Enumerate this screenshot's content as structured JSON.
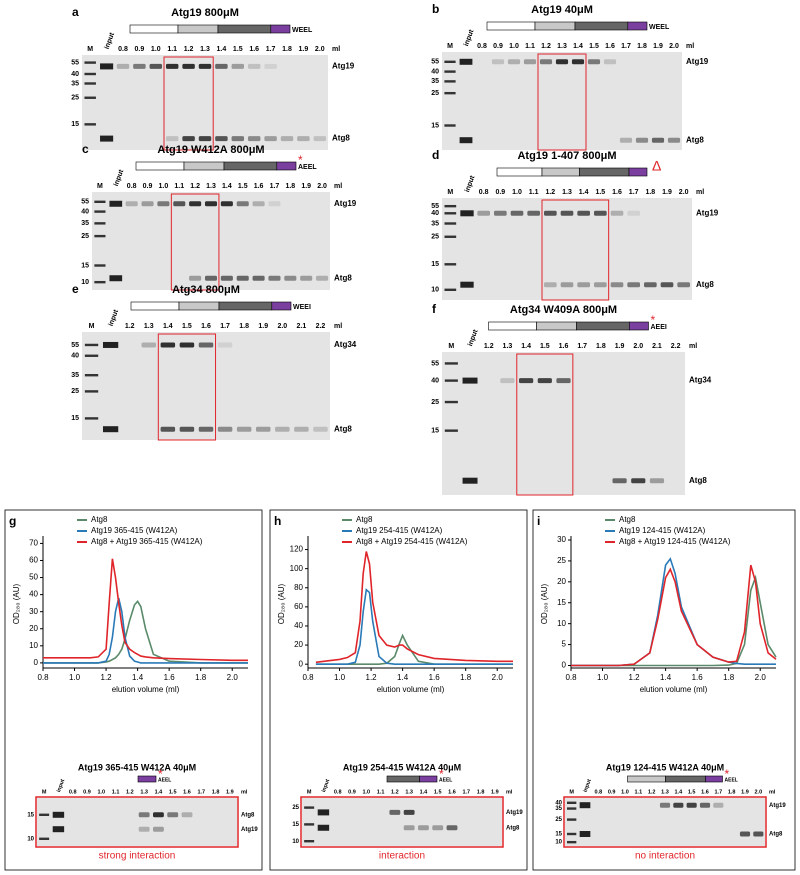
{
  "gels": [
    {
      "letter": "a",
      "title": "Atg19 800μM",
      "motif": "WEEL",
      "lanes": [
        "M",
        "input",
        "0.8",
        "0.9",
        "1.0",
        "1.1",
        "1.2",
        "1.3",
        "1.4",
        "1.5",
        "1.6",
        "1.7",
        "1.8",
        "1.9",
        "2.0"
      ],
      "unit": "ml",
      "markers": [
        "55",
        "40",
        "35",
        "25",
        "15"
      ],
      "proteins": [
        "Atg19",
        "Atg8"
      ]
    },
    {
      "letter": "b",
      "title": "Atg19 40μM",
      "motif": "WEEL",
      "lanes": [
        "M",
        "input",
        "0.8",
        "0.9",
        "1.0",
        "1.1",
        "1.2",
        "1.3",
        "1.4",
        "1.5",
        "1.6",
        "1.7",
        "1.8",
        "1.9",
        "2.0"
      ],
      "unit": "ml",
      "markers": [
        "55",
        "40",
        "35",
        "25",
        "15"
      ],
      "proteins": [
        "Atg19",
        "Atg8"
      ]
    },
    {
      "letter": "c",
      "title": "Atg19 W412A 800μM",
      "motif": "AEEL",
      "mutation": "*",
      "lanes": [
        "M",
        "input",
        "0.8",
        "0.9",
        "1.0",
        "1.1",
        "1.2",
        "1.3",
        "1.4",
        "1.5",
        "1.6",
        "1.7",
        "1.8",
        "1.9",
        "2.0"
      ],
      "unit": "ml",
      "markers": [
        "55",
        "40",
        "35",
        "25",
        "15",
        "10"
      ],
      "proteins": [
        "Atg19",
        "Atg8"
      ]
    },
    {
      "letter": "d",
      "title": "Atg19 1-407 800μM",
      "mutation": "Δ",
      "lanes": [
        "M",
        "input",
        "0.8",
        "0.9",
        "1.0",
        "1.1",
        "1.2",
        "1.3",
        "1.4",
        "1.5",
        "1.6",
        "1.7",
        "1.8",
        "1.9",
        "2.0"
      ],
      "unit": "ml",
      "markers": [
        "55",
        "40",
        "35",
        "25",
        "15",
        "10"
      ],
      "proteins": [
        "Atg19",
        "Atg8"
      ]
    },
    {
      "letter": "e",
      "title": "Atg34 800μM",
      "motif": "WEEI",
      "lanes": [
        "M",
        "input",
        "1.2",
        "1.3",
        "1.4",
        "1.5",
        "1.6",
        "1.7",
        "1.8",
        "1.9",
        "2.0",
        "2.1",
        "2.2"
      ],
      "unit": "ml",
      "markers": [
        "55",
        "40",
        "35",
        "25",
        "15"
      ],
      "proteins": [
        "Atg34",
        "Atg8"
      ]
    },
    {
      "letter": "f",
      "title": "Atg34 W409A 800μM",
      "motif": "AEEI",
      "mutation": "*",
      "lanes": [
        "M",
        "input",
        "1.2",
        "1.3",
        "1.4",
        "1.5",
        "1.6",
        "1.7",
        "1.8",
        "1.9",
        "2.0",
        "2.1",
        "2.2"
      ],
      "unit": "ml",
      "markers": [
        "55",
        "40",
        "25",
        "15"
      ],
      "proteins": [
        "Atg34",
        "Atg8"
      ]
    }
  ],
  "sub_gels": [
    {
      "title": "Atg19 365-415 W412A 40μM",
      "motif": "AEEL",
      "mutation": "*",
      "lanes": [
        "M",
        "input",
        "0.8",
        "0.9",
        "1.0",
        "1.1",
        "1.2",
        "1.3",
        "1.4",
        "1.5",
        "1.6",
        "1.7",
        "1.8",
        "1.9"
      ],
      "unit": "ml",
      "markers": [
        "15",
        "10"
      ],
      "proteins": [
        "Atg8",
        "Atg19"
      ],
      "caption": "strong interaction"
    },
    {
      "title": "Atg19 254-415 W412A 40μM",
      "motif": "AEEL",
      "mutation": "*",
      "lanes": [
        "M",
        "input",
        "0.8",
        "0.9",
        "1.0",
        "1.1",
        "1.2",
        "1.3",
        "1.4",
        "1.5",
        "1.6",
        "1.7",
        "1.8",
        "1.9"
      ],
      "unit": "ml",
      "markers": [
        "25",
        "15",
        "10"
      ],
      "proteins": [
        "Atg19",
        "Atg8"
      ],
      "caption": "interaction"
    },
    {
      "title": "Atg19 124-415 W412A 40μM",
      "motif": "AEEL",
      "mutation": "*",
      "lanes": [
        "M",
        "input",
        "0.8",
        "0.9",
        "1.0",
        "1.1",
        "1.2",
        "1.3",
        "1.4",
        "1.5",
        "1.6",
        "1.7",
        "1.8",
        "1.9",
        "2.0"
      ],
      "unit": "ml",
      "markers": [
        "40",
        "35",
        "25",
        "15",
        "10"
      ],
      "proteins": [
        "Atg19",
        "Atg8"
      ],
      "caption": "no interaction"
    }
  ],
  "chart_data": [
    {
      "type": "line",
      "letter": "g",
      "xlabel": "elution volume (ml)",
      "ylabel": "OD₂₈₀ (AU)",
      "x": [
        0.8,
        0.9,
        1.0,
        1.1,
        1.15,
        1.2,
        1.22,
        1.24,
        1.26,
        1.28,
        1.3,
        1.32,
        1.35,
        1.38,
        1.4,
        1.42,
        1.45,
        1.5,
        1.6,
        1.8,
        2.0,
        2.1
      ],
      "series": [
        {
          "name": "Atg8",
          "color": "#5a8a6a",
          "values": [
            0,
            0,
            0,
            0,
            0,
            0.5,
            1,
            2,
            3,
            5,
            8,
            14,
            25,
            34,
            36,
            33,
            20,
            5,
            1,
            0,
            0,
            0
          ]
        },
        {
          "name": "Atg19 365-415 (W412A)",
          "color": "#2a7ab8",
          "values": [
            0,
            0,
            0,
            0,
            0,
            1,
            5,
            15,
            30,
            38,
            30,
            15,
            4,
            1,
            0.5,
            0,
            0,
            0,
            0,
            0,
            0,
            0
          ]
        },
        {
          "name": "Atg8 + Atg19 365-415 (W412A)",
          "color": "#e0252a",
          "values": [
            3,
            3,
            3,
            3,
            3.5,
            8,
            35,
            61,
            50,
            35,
            22,
            12,
            8,
            6,
            5,
            4,
            3.5,
            3,
            2.5,
            2,
            1.5,
            1.5
          ]
        }
      ],
      "xlim": [
        0.8,
        2.1
      ],
      "xticks": [
        0.8,
        {
          "value": 1,
          "label": "1.0"
        },
        1.2,
        1.4,
        1.6,
        1.8,
        {
          "value": 2,
          "label": "2.0"
        }
      ],
      "ylim": [
        -3,
        72
      ],
      "yticks": [
        0,
        10,
        20,
        30,
        40,
        50,
        60,
        70
      ]
    },
    {
      "type": "line",
      "letter": "h",
      "xlabel": "elution volume (ml)",
      "ylabel": "OD₂₈₀ (AU)",
      "x": [
        0.85,
        0.9,
        1.0,
        1.05,
        1.1,
        1.13,
        1.15,
        1.17,
        1.19,
        1.21,
        1.25,
        1.3,
        1.35,
        1.38,
        1.4,
        1.43,
        1.5,
        1.6,
        1.8,
        2.0,
        2.1
      ],
      "series": [
        {
          "name": "Atg8",
          "color": "#5a8a6a",
          "values": [
            0,
            0,
            0,
            0,
            0,
            0,
            0,
            0,
            0,
            0,
            0,
            1,
            8,
            22,
            30,
            20,
            3,
            0,
            0,
            0,
            0
          ]
        },
        {
          "name": "Atg19 254-415 (W412A)",
          "color": "#2a7ab8",
          "values": [
            0,
            0,
            0,
            0,
            2,
            20,
            55,
            78,
            75,
            45,
            8,
            1,
            0,
            0,
            0,
            0,
            0,
            0,
            0,
            0,
            0
          ]
        },
        {
          "name": "Atg8 + Atg19 254-415 (W412A)",
          "color": "#e0252a",
          "values": [
            2,
            3,
            5,
            7,
            12,
            45,
            95,
            118,
            105,
            65,
            30,
            20,
            18,
            20,
            20,
            16,
            10,
            6,
            4,
            3,
            3
          ]
        }
      ],
      "xlim": [
        0.8,
        2.1
      ],
      "xticks": [
        0.8,
        {
          "value": 1,
          "label": "1.0"
        },
        1.2,
        1.4,
        1.6,
        1.8,
        {
          "value": 2,
          "label": "2.0"
        }
      ],
      "ylim": [
        -4,
        130
      ],
      "yticks": [
        0,
        20,
        40,
        60,
        80,
        100,
        120
      ]
    },
    {
      "type": "line",
      "letter": "i",
      "xlabel": "elution volume (ml)",
      "ylabel": "OD₂₈₀ (AU)",
      "x": [
        0.8,
        0.9,
        1.0,
        1.1,
        1.2,
        1.3,
        1.35,
        1.4,
        1.43,
        1.46,
        1.5,
        1.6,
        1.7,
        1.8,
        1.85,
        1.9,
        1.94,
        1.97,
        2.0,
        2.05,
        2.1
      ],
      "series": [
        {
          "name": "Atg8",
          "color": "#5a8a6a",
          "values": [
            0,
            0,
            0,
            0,
            0,
            0,
            0,
            0,
            0,
            0,
            0,
            0,
            0,
            0.1,
            0.5,
            5,
            18,
            21,
            15,
            5,
            2
          ]
        },
        {
          "name": "Atg19 124-415 (W412A)",
          "color": "#2a7ab8",
          "values": [
            0,
            0,
            0,
            0,
            0.3,
            3,
            12,
            24,
            25.5,
            22,
            14,
            5,
            2,
            0.8,
            0.5,
            0.3,
            0.3,
            0.3,
            0.3,
            0.3,
            0.3
          ]
        },
        {
          "name": "Atg8 + Atg19 124-415 (W412A)",
          "color": "#e0252a",
          "values": [
            0,
            0,
            0,
            0,
            0.3,
            3,
            11,
            21,
            23,
            20,
            13,
            5,
            2,
            0.8,
            1,
            8,
            24,
            20,
            10,
            3,
            1.5
          ]
        }
      ],
      "xlim": [
        0.8,
        2.1
      ],
      "xticks": [
        0.8,
        {
          "value": 1,
          "label": "1.0"
        },
        1.2,
        1.4,
        1.6,
        1.8,
        {
          "value": 2,
          "label": "2.0"
        }
      ],
      "ylim": [
        -0.6,
        30
      ],
      "yticks": [
        0,
        5,
        10,
        15,
        20,
        25,
        30
      ]
    }
  ]
}
